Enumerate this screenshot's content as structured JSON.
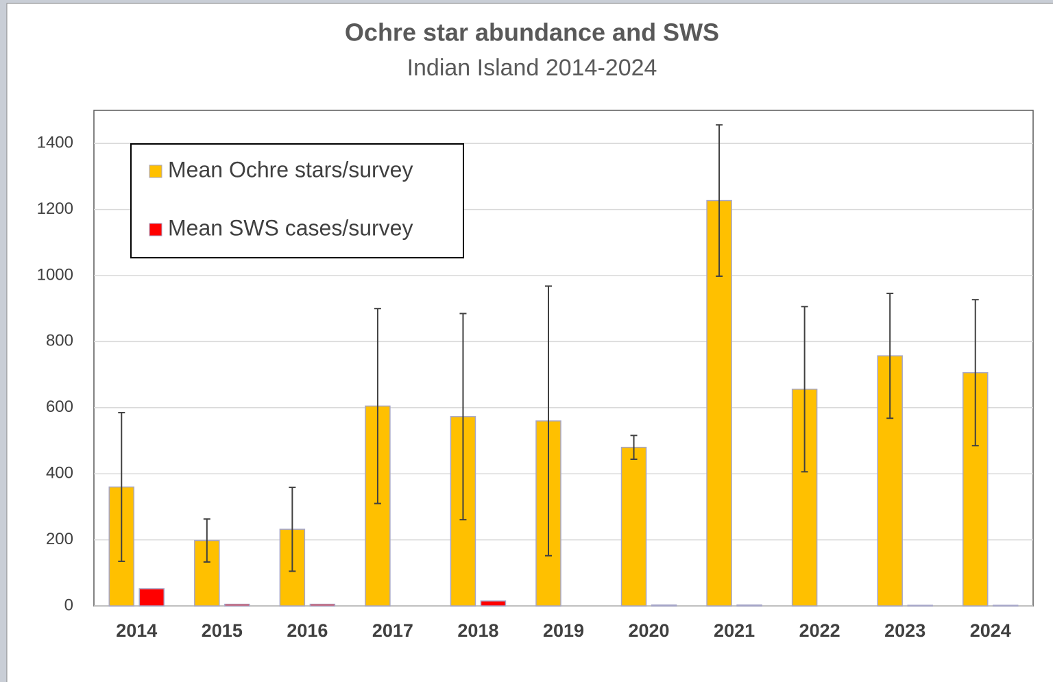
{
  "chart_data": {
    "type": "bar",
    "title": "Ochre star abundance and SWS",
    "subtitle": "Indian Island 2014-2024",
    "categories": [
      "2014",
      "2015",
      "2016",
      "2017",
      "2018",
      "2019",
      "2020",
      "2021",
      "2022",
      "2023",
      "2024"
    ],
    "series": [
      {
        "name": "Mean Ochre stars/survey",
        "color": "#ffc000",
        "values": [
          360,
          198,
          232,
          605,
          573,
          560,
          480,
          1227,
          656,
          757,
          706
        ],
        "errors": [
          225,
          65,
          127,
          295,
          312,
          408,
          36,
          229,
          250,
          189,
          221
        ]
      },
      {
        "name": "Mean SWS cases/survey",
        "color": "#ff0000",
        "values": [
          52,
          5,
          5,
          0,
          15,
          0,
          3,
          3,
          0,
          2,
          2
        ]
      }
    ],
    "ylim": [
      0,
      1500
    ],
    "yticks": [
      0,
      200,
      400,
      600,
      800,
      1000,
      1200,
      1400
    ],
    "grid": true,
    "legend": "upper left"
  }
}
